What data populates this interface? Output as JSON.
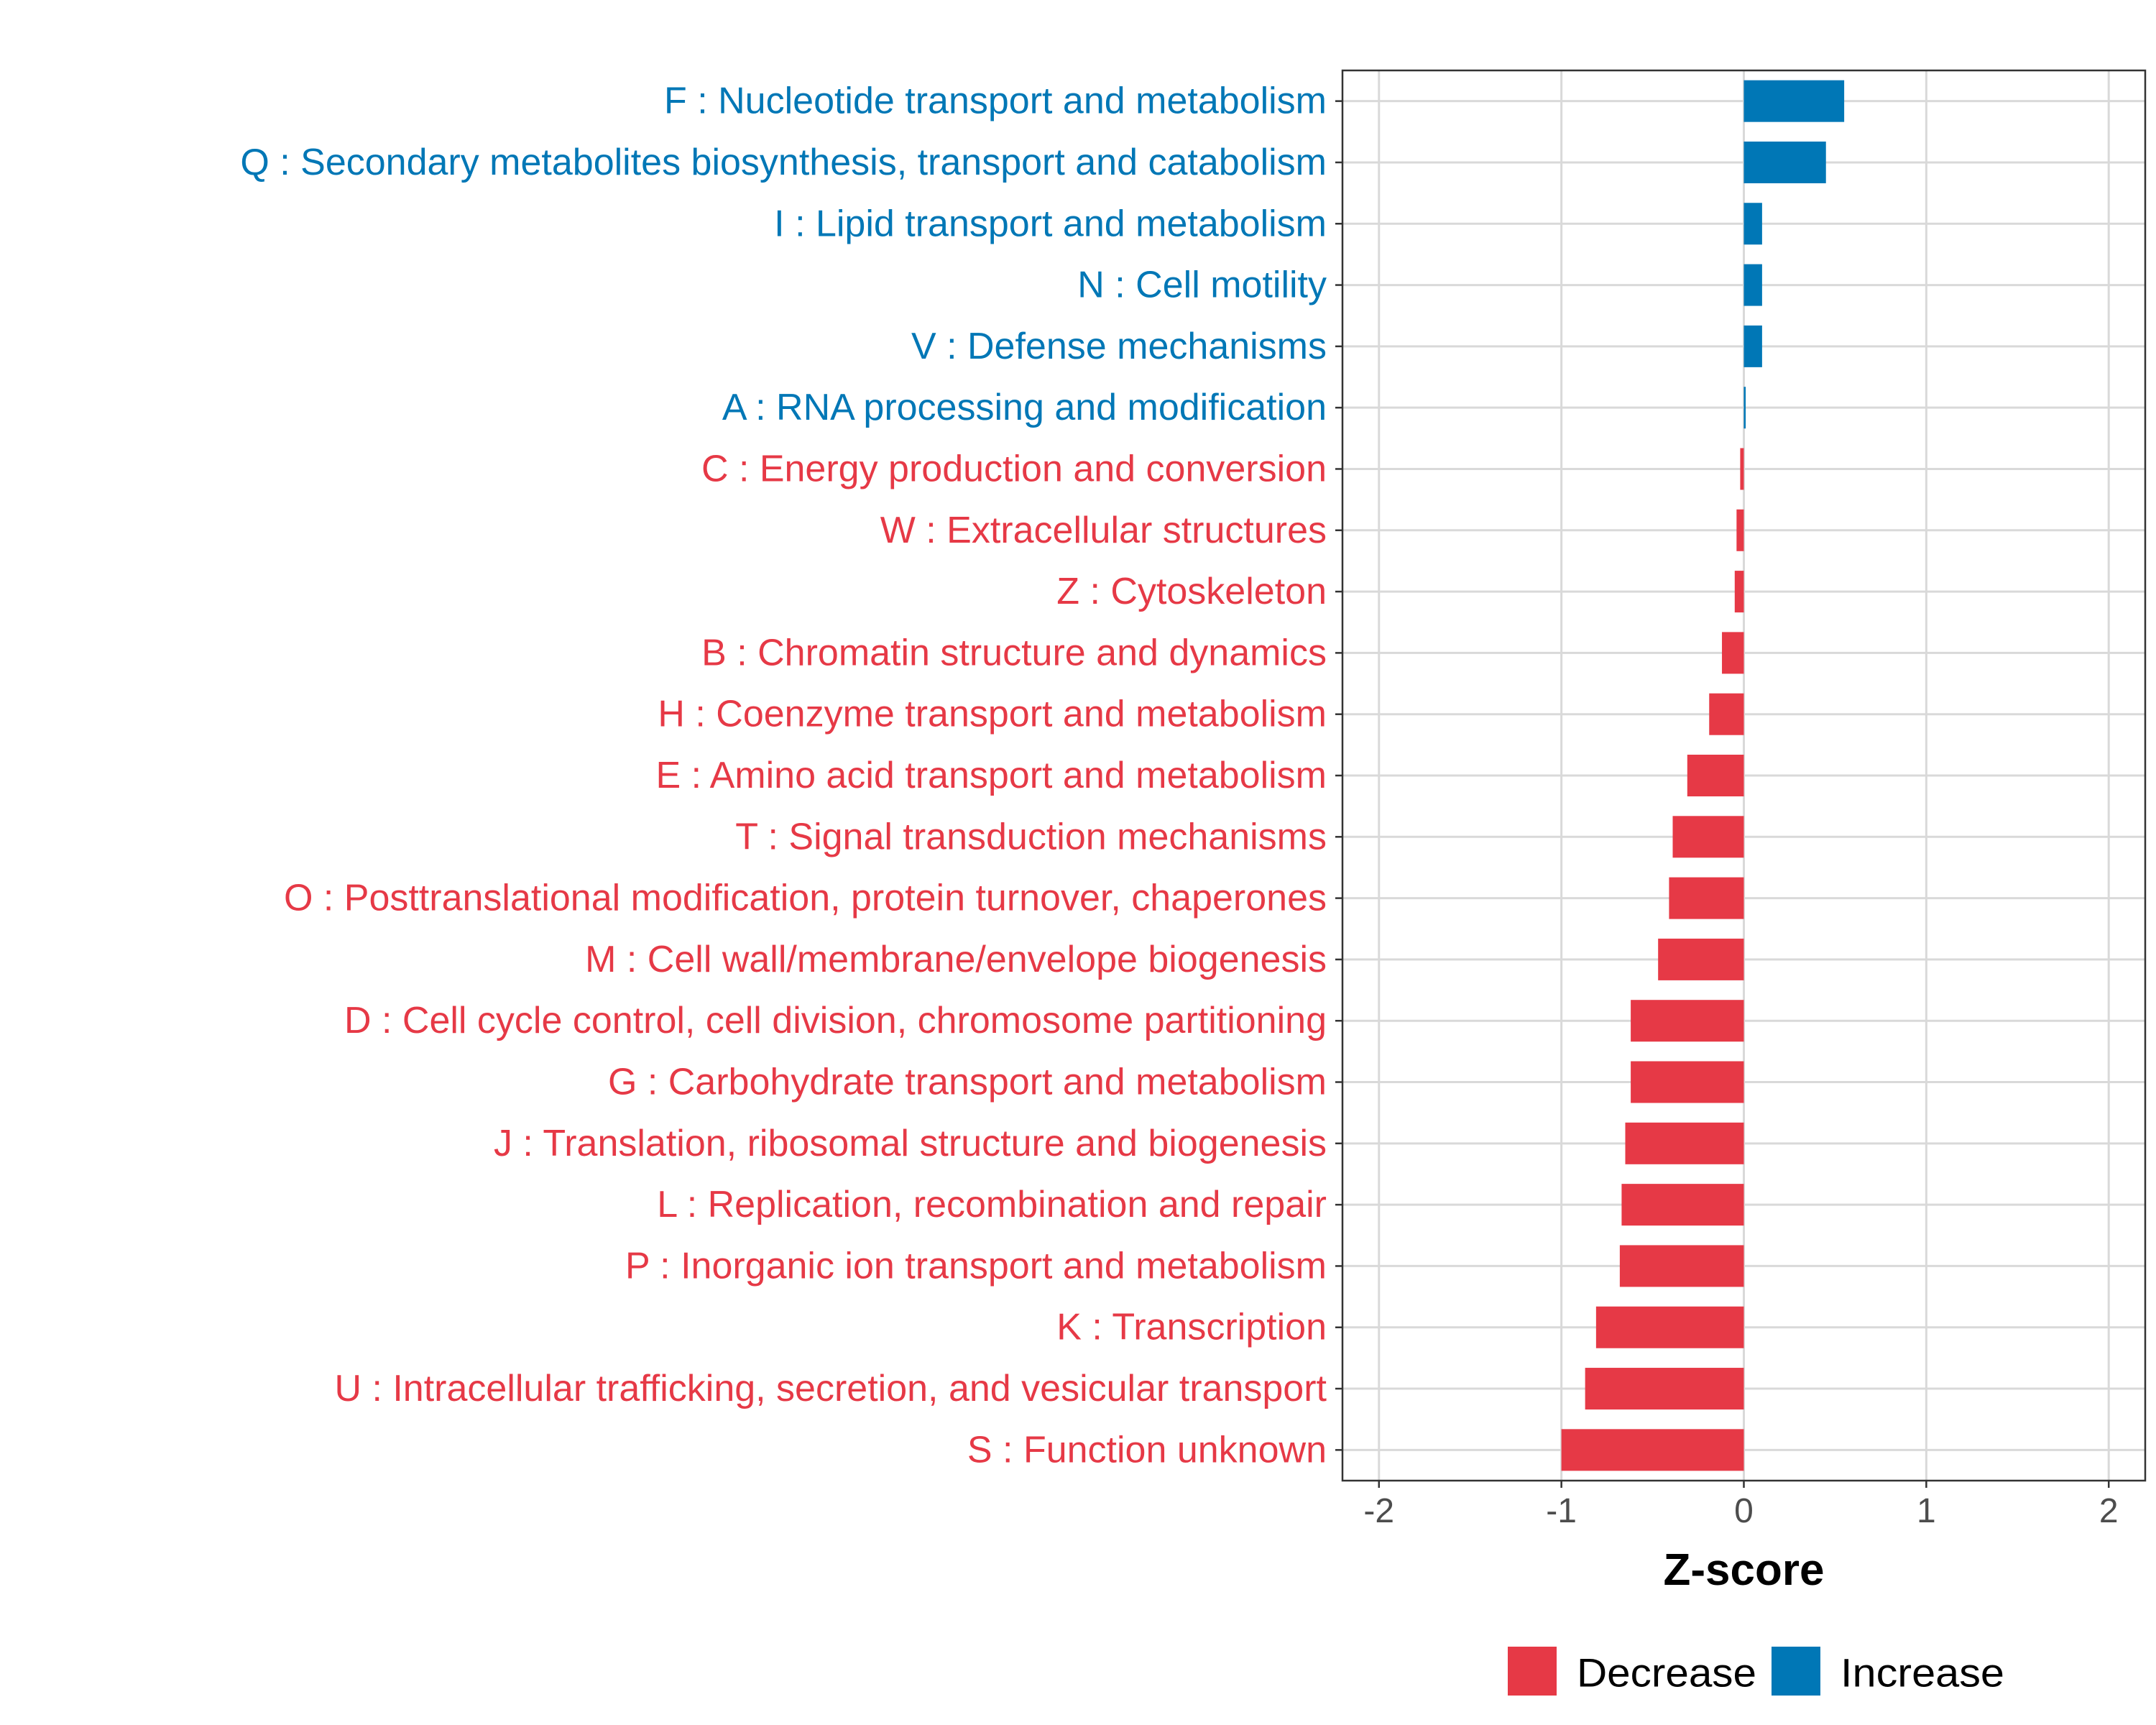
{
  "chart_data": {
    "type": "bar",
    "orientation": "horizontal",
    "title": "",
    "xlabel": "Z-score",
    "ylabel": "",
    "xlim": [
      -2.2,
      2.2
    ],
    "x_ticks": [
      -2,
      -1,
      0,
      1,
      2
    ],
    "x_tick_labels": [
      "-2",
      "-1",
      "0",
      "1",
      "2"
    ],
    "grid": true,
    "legend_position": "bottom",
    "legend": [
      {
        "key": "Decrease",
        "label": "Decrease",
        "color": "#E63946"
      },
      {
        "key": "Increase",
        "label": "Increase",
        "color": "#0077B6"
      }
    ],
    "categories": [
      "F : Nucleotide transport and metabolism",
      "Q : Secondary metabolites biosynthesis, transport and catabolism",
      "I : Lipid transport and metabolism",
      "N : Cell motility",
      "V : Defense mechanisms",
      "A : RNA processing and modification",
      "C : Energy production and conversion",
      "W : Extracellular structures",
      "Z : Cytoskeleton",
      "B : Chromatin structure and dynamics",
      "H : Coenzyme transport and metabolism",
      "E : Amino acid transport and metabolism",
      "T : Signal transduction mechanisms",
      "O : Posttranslational modification, protein turnover, chaperones",
      "M : Cell wall/membrane/envelope biogenesis",
      "D : Cell cycle control, cell division, chromosome partitioning",
      "G : Carbohydrate transport and metabolism",
      "J : Translation, ribosomal structure and biogenesis",
      "L : Replication, recombination and repair",
      "P : Inorganic ion transport and metabolism",
      "K : Transcription",
      "U : Intracellular trafficking, secretion, and vesicular transport",
      "S : Function unknown"
    ],
    "values": [
      0.55,
      0.45,
      0.1,
      0.1,
      0.1,
      0.01,
      -0.02,
      -0.04,
      -0.05,
      -0.12,
      -0.19,
      -0.31,
      -0.39,
      -0.41,
      -0.47,
      -0.62,
      -0.62,
      -0.65,
      -0.67,
      -0.68,
      -0.81,
      -0.87,
      -1.0
    ],
    "groups": [
      "Increase",
      "Increase",
      "Increase",
      "Increase",
      "Increase",
      "Increase",
      "Decrease",
      "Decrease",
      "Decrease",
      "Decrease",
      "Decrease",
      "Decrease",
      "Decrease",
      "Decrease",
      "Decrease",
      "Decrease",
      "Decrease",
      "Decrease",
      "Decrease",
      "Decrease",
      "Decrease",
      "Decrease",
      "Decrease"
    ]
  }
}
